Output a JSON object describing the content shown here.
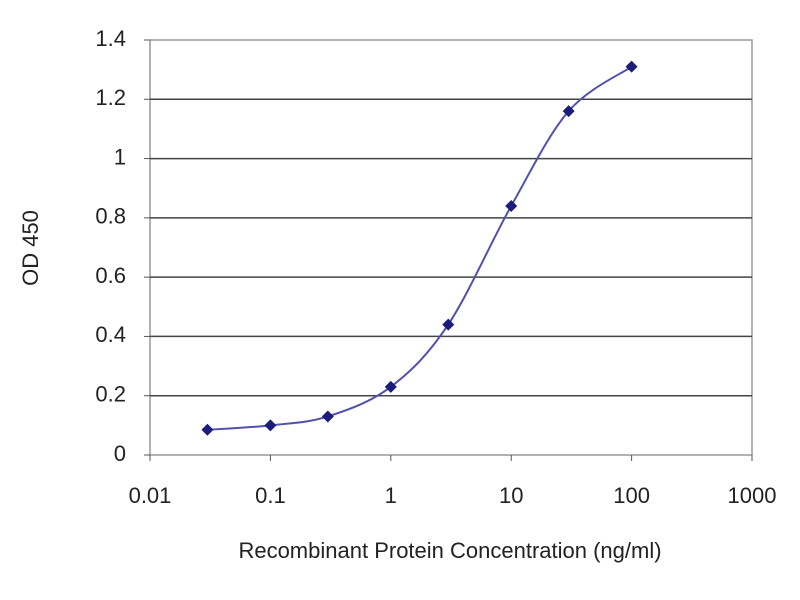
{
  "chart_data": {
    "type": "line",
    "x_label": "Recombinant Protein Concentration (ng/ml)",
    "y_label": "OD 450",
    "x": [
      0.03,
      0.1,
      0.3,
      1,
      3,
      10,
      30,
      100
    ],
    "values": [
      0.085,
      0.1,
      0.13,
      0.23,
      0.44,
      0.84,
      1.16,
      1.31
    ],
    "color": "#1c1c7c",
    "line_color": "#5050b0",
    "xscale": "log",
    "xlim": [
      0.01,
      1000
    ],
    "xticks": [
      0.01,
      0.1,
      1,
      10,
      100,
      1000
    ],
    "ylim": [
      0,
      1.4
    ],
    "yticks": [
      0,
      0.2,
      0.4,
      0.6,
      0.8,
      1,
      1.2,
      1.4
    ],
    "grid": true
  }
}
